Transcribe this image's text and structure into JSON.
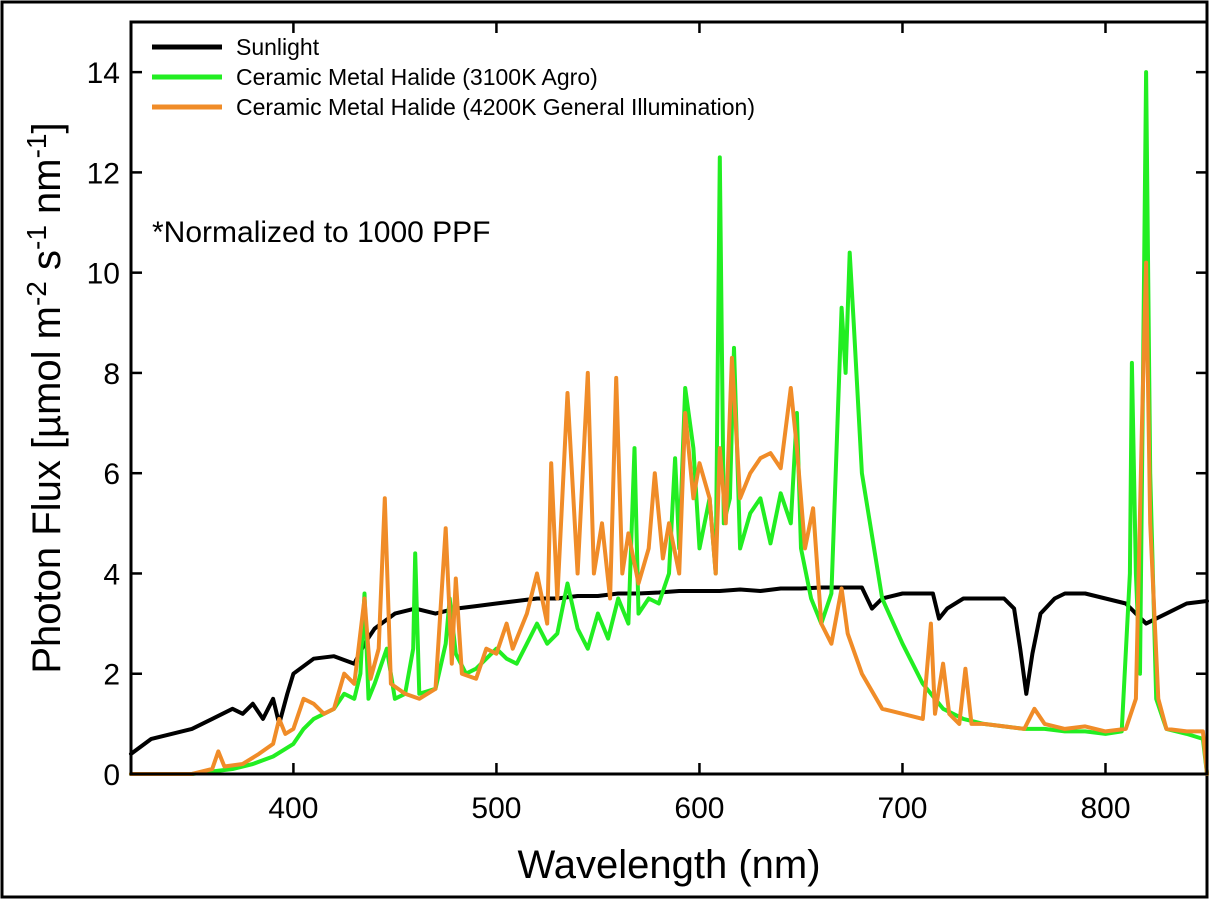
{
  "chart_data": {
    "type": "line",
    "title": "",
    "xlabel": "Wavelength (nm)",
    "ylabel": "Photon Flux [µmol m-2 s-1 nm-1]",
    "ylabel_parts": {
      "base": "Photon Flux [µmol m",
      "sup1": "-2",
      "mid": " s",
      "sup2": "-1",
      "mid2": " nm",
      "sup3": "-1",
      "end": "]"
    },
    "xlim": [
      320,
      850
    ],
    "ylim": [
      0,
      15
    ],
    "x_ticks": [
      400,
      500,
      600,
      700,
      800
    ],
    "y_ticks": [
      0,
      2,
      4,
      6,
      8,
      10,
      12,
      14
    ],
    "x_tick_labels": [
      "400",
      "500",
      "600",
      "700",
      "800"
    ],
    "y_tick_labels": [
      "0",
      "2",
      "4",
      "6",
      "8",
      "10",
      "12",
      "14"
    ],
    "grid": false,
    "legend_position": "top-left",
    "annotation": "*Normalized to 1000 PPF",
    "series": [
      {
        "name": "Sunlight",
        "color": "#000000",
        "points": [
          [
            320,
            0.4
          ],
          [
            330,
            0.7
          ],
          [
            340,
            0.8
          ],
          [
            350,
            0.9
          ],
          [
            360,
            1.1
          ],
          [
            370,
            1.3
          ],
          [
            375,
            1.2
          ],
          [
            380,
            1.4
          ],
          [
            385,
            1.1
          ],
          [
            390,
            1.5
          ],
          [
            393,
            1.0
          ],
          [
            397,
            1.6
          ],
          [
            400,
            2.0
          ],
          [
            410,
            2.3
          ],
          [
            420,
            2.35
          ],
          [
            430,
            2.2
          ],
          [
            435,
            2.6
          ],
          [
            440,
            2.9
          ],
          [
            450,
            3.2
          ],
          [
            460,
            3.3
          ],
          [
            470,
            3.2
          ],
          [
            480,
            3.3
          ],
          [
            490,
            3.35
          ],
          [
            500,
            3.4
          ],
          [
            510,
            3.45
          ],
          [
            520,
            3.5
          ],
          [
            530,
            3.5
          ],
          [
            540,
            3.55
          ],
          [
            550,
            3.55
          ],
          [
            560,
            3.6
          ],
          [
            570,
            3.6
          ],
          [
            580,
            3.62
          ],
          [
            590,
            3.65
          ],
          [
            600,
            3.65
          ],
          [
            610,
            3.65
          ],
          [
            620,
            3.68
          ],
          [
            630,
            3.65
          ],
          [
            640,
            3.7
          ],
          [
            650,
            3.7
          ],
          [
            660,
            3.72
          ],
          [
            670,
            3.72
          ],
          [
            680,
            3.72
          ],
          [
            685,
            3.3
          ],
          [
            690,
            3.5
          ],
          [
            700,
            3.6
          ],
          [
            710,
            3.6
          ],
          [
            715,
            3.6
          ],
          [
            718,
            3.1
          ],
          [
            722,
            3.3
          ],
          [
            730,
            3.5
          ],
          [
            740,
            3.5
          ],
          [
            750,
            3.5
          ],
          [
            755,
            3.3
          ],
          [
            758,
            2.5
          ],
          [
            761,
            1.6
          ],
          [
            764,
            2.4
          ],
          [
            768,
            3.2
          ],
          [
            775,
            3.5
          ],
          [
            780,
            3.6
          ],
          [
            790,
            3.6
          ],
          [
            800,
            3.5
          ],
          [
            810,
            3.4
          ],
          [
            815,
            3.2
          ],
          [
            820,
            3.0
          ],
          [
            825,
            3.1
          ],
          [
            830,
            3.2
          ],
          [
            840,
            3.4
          ],
          [
            850,
            3.45
          ]
        ]
      },
      {
        "name": "Ceramic Metal Halide (3100K  Agro)",
        "color": "#22ee22",
        "points": [
          [
            320,
            0.0
          ],
          [
            350,
            0.0
          ],
          [
            360,
            0.05
          ],
          [
            370,
            0.1
          ],
          [
            380,
            0.2
          ],
          [
            390,
            0.35
          ],
          [
            400,
            0.6
          ],
          [
            405,
            0.9
          ],
          [
            410,
            1.1
          ],
          [
            420,
            1.3
          ],
          [
            425,
            1.6
          ],
          [
            430,
            1.5
          ],
          [
            433,
            2.0
          ],
          [
            435,
            3.6
          ],
          [
            437,
            1.5
          ],
          [
            440,
            1.8
          ],
          [
            446,
            2.5
          ],
          [
            450,
            1.5
          ],
          [
            455,
            1.6
          ],
          [
            459,
            2.5
          ],
          [
            460,
            4.4
          ],
          [
            462,
            1.6
          ],
          [
            470,
            1.7
          ],
          [
            475,
            2.6
          ],
          [
            477,
            3.5
          ],
          [
            480,
            2.4
          ],
          [
            485,
            2.0
          ],
          [
            490,
            2.1
          ],
          [
            495,
            2.3
          ],
          [
            500,
            2.5
          ],
          [
            505,
            2.3
          ],
          [
            510,
            2.2
          ],
          [
            515,
            2.6
          ],
          [
            520,
            3.0
          ],
          [
            525,
            2.6
          ],
          [
            530,
            2.8
          ],
          [
            535,
            3.8
          ],
          [
            540,
            2.9
          ],
          [
            545,
            2.5
          ],
          [
            550,
            3.2
          ],
          [
            555,
            2.7
          ],
          [
            560,
            3.5
          ],
          [
            565,
            3.0
          ],
          [
            568,
            6.5
          ],
          [
            570,
            3.2
          ],
          [
            575,
            3.5
          ],
          [
            580,
            3.4
          ],
          [
            585,
            4.0
          ],
          [
            588,
            6.3
          ],
          [
            590,
            4.5
          ],
          [
            593,
            7.7
          ],
          [
            597,
            6.5
          ],
          [
            600,
            4.5
          ],
          [
            605,
            5.5
          ],
          [
            608,
            4.0
          ],
          [
            610,
            12.3
          ],
          [
            612,
            5.0
          ],
          [
            615,
            5.5
          ],
          [
            617,
            8.5
          ],
          [
            620,
            4.5
          ],
          [
            625,
            5.2
          ],
          [
            630,
            5.5
          ],
          [
            635,
            4.6
          ],
          [
            640,
            5.6
          ],
          [
            645,
            5.0
          ],
          [
            648,
            7.2
          ],
          [
            650,
            4.5
          ],
          [
            655,
            3.5
          ],
          [
            660,
            3.0
          ],
          [
            665,
            3.6
          ],
          [
            668,
            7.0
          ],
          [
            670,
            9.3
          ],
          [
            672,
            8.0
          ],
          [
            674,
            10.4
          ],
          [
            676,
            9.0
          ],
          [
            680,
            6.0
          ],
          [
            690,
            3.5
          ],
          [
            700,
            2.6
          ],
          [
            710,
            1.8
          ],
          [
            720,
            1.3
          ],
          [
            730,
            1.1
          ],
          [
            740,
            1.0
          ],
          [
            750,
            0.95
          ],
          [
            760,
            0.9
          ],
          [
            770,
            0.9
          ],
          [
            780,
            0.85
          ],
          [
            790,
            0.85
          ],
          [
            800,
            0.8
          ],
          [
            808,
            0.85
          ],
          [
            812,
            4.0
          ],
          [
            813,
            8.2
          ],
          [
            815,
            4.0
          ],
          [
            817,
            2.0
          ],
          [
            820,
            14.0
          ],
          [
            822,
            6.0
          ],
          [
            825,
            1.5
          ],
          [
            830,
            0.9
          ],
          [
            840,
            0.8
          ],
          [
            848,
            0.7
          ],
          [
            850,
            0.0
          ]
        ]
      },
      {
        "name": "Ceramic Metal Halide (4200K  General Illumination)",
        "color": "#f08c28",
        "points": [
          [
            320,
            0.0
          ],
          [
            350,
            0.0
          ],
          [
            360,
            0.1
          ],
          [
            363,
            0.45
          ],
          [
            366,
            0.15
          ],
          [
            375,
            0.2
          ],
          [
            383,
            0.4
          ],
          [
            390,
            0.6
          ],
          [
            393,
            1.1
          ],
          [
            396,
            0.8
          ],
          [
            400,
            0.9
          ],
          [
            405,
            1.5
          ],
          [
            410,
            1.4
          ],
          [
            415,
            1.2
          ],
          [
            420,
            1.3
          ],
          [
            425,
            2.0
          ],
          [
            430,
            1.8
          ],
          [
            435,
            3.5
          ],
          [
            438,
            1.9
          ],
          [
            442,
            2.5
          ],
          [
            445,
            5.5
          ],
          [
            448,
            1.8
          ],
          [
            455,
            1.6
          ],
          [
            462,
            1.5
          ],
          [
            470,
            1.7
          ],
          [
            475,
            4.9
          ],
          [
            478,
            2.2
          ],
          [
            480,
            3.9
          ],
          [
            483,
            2.0
          ],
          [
            490,
            1.9
          ],
          [
            495,
            2.5
          ],
          [
            500,
            2.4
          ],
          [
            505,
            3.0
          ],
          [
            508,
            2.5
          ],
          [
            515,
            3.2
          ],
          [
            520,
            4.0
          ],
          [
            525,
            3.0
          ],
          [
            527,
            6.2
          ],
          [
            530,
            3.5
          ],
          [
            535,
            7.6
          ],
          [
            540,
            4.0
          ],
          [
            545,
            8.0
          ],
          [
            548,
            4.0
          ],
          [
            552,
            5.0
          ],
          [
            556,
            3.5
          ],
          [
            559,
            7.9
          ],
          [
            562,
            4.0
          ],
          [
            565,
            4.8
          ],
          [
            570,
            3.8
          ],
          [
            575,
            4.5
          ],
          [
            578,
            6.0
          ],
          [
            582,
            4.3
          ],
          [
            585,
            5.0
          ],
          [
            590,
            4.0
          ],
          [
            593,
            7.2
          ],
          [
            597,
            5.5
          ],
          [
            600,
            6.2
          ],
          [
            605,
            5.5
          ],
          [
            608,
            4.0
          ],
          [
            610,
            6.5
          ],
          [
            613,
            5.0
          ],
          [
            616,
            8.3
          ],
          [
            620,
            5.5
          ],
          [
            625,
            6.0
          ],
          [
            630,
            6.3
          ],
          [
            635,
            6.4
          ],
          [
            640,
            6.1
          ],
          [
            645,
            7.7
          ],
          [
            648,
            6.5
          ],
          [
            652,
            4.5
          ],
          [
            656,
            5.3
          ],
          [
            660,
            3.0
          ],
          [
            665,
            2.6
          ],
          [
            670,
            3.7
          ],
          [
            673,
            2.8
          ],
          [
            680,
            2.0
          ],
          [
            690,
            1.3
          ],
          [
            700,
            1.2
          ],
          [
            710,
            1.1
          ],
          [
            714,
            3.0
          ],
          [
            716,
            1.2
          ],
          [
            720,
            2.2
          ],
          [
            723,
            1.2
          ],
          [
            728,
            1.0
          ],
          [
            731,
            2.1
          ],
          [
            734,
            1.0
          ],
          [
            740,
            1.0
          ],
          [
            750,
            0.95
          ],
          [
            760,
            0.9
          ],
          [
            765,
            1.3
          ],
          [
            770,
            1.0
          ],
          [
            780,
            0.9
          ],
          [
            790,
            0.95
          ],
          [
            800,
            0.85
          ],
          [
            810,
            0.9
          ],
          [
            815,
            1.5
          ],
          [
            818,
            7.0
          ],
          [
            820,
            10.2
          ],
          [
            822,
            5.0
          ],
          [
            826,
            1.5
          ],
          [
            830,
            0.9
          ],
          [
            840,
            0.85
          ],
          [
            848,
            0.85
          ],
          [
            850,
            0.0
          ]
        ]
      }
    ]
  }
}
